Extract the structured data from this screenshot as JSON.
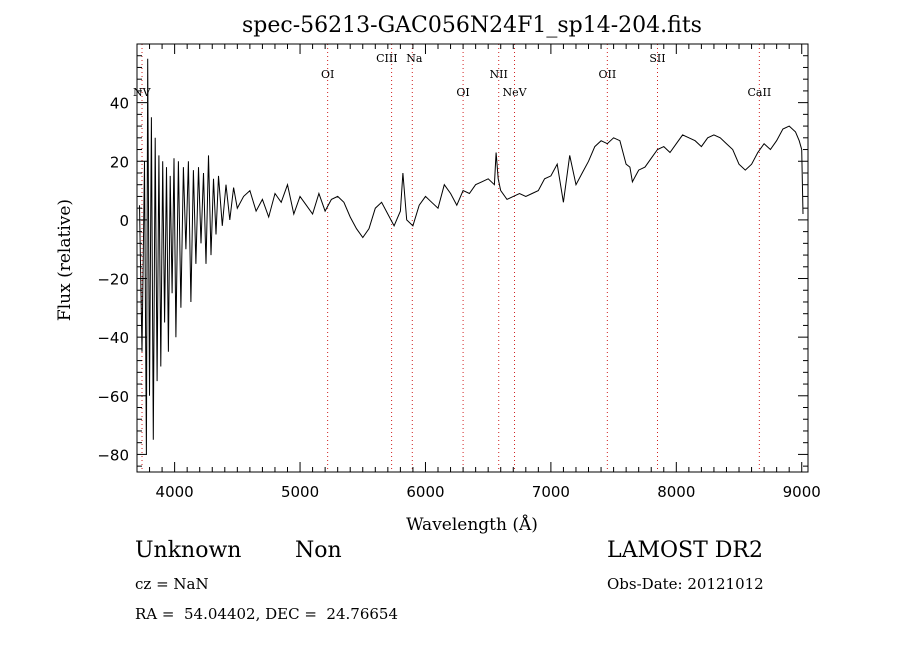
{
  "chart_data": {
    "type": "line",
    "title": "spec-56213-GAC056N24F1_sp14-204.fits",
    "xlabel": "Wavelength (Å)",
    "ylabel": "Flux (relative)",
    "xlim": [
      3700,
      9050
    ],
    "ylim": [
      -86,
      60
    ],
    "xticks": [
      4000,
      5000,
      6000,
      7000,
      8000,
      9000
    ],
    "yticks": [
      -80,
      -60,
      -40,
      -20,
      0,
      20,
      40
    ],
    "line_color": "#000000",
    "series": [
      {
        "x": [
          3720,
          3740,
          3760,
          3775,
          3785,
          3800,
          3815,
          3830,
          3845,
          3860,
          3875,
          3890,
          3905,
          3920,
          3935,
          3950,
          3965,
          3980,
          3995,
          4010,
          4030,
          4050,
          4070,
          4090,
          4110,
          4130,
          4150,
          4170,
          4190,
          4210,
          4230,
          4250,
          4270,
          4290,
          4310,
          4330,
          4350,
          4380,
          4410,
          4440,
          4470,
          4500,
          4550,
          4600,
          4650,
          4700,
          4750,
          4800,
          4850,
          4900,
          4950,
          5000,
          5050,
          5100,
          5150,
          5200,
          5250,
          5300,
          5350,
          5400,
          5450,
          5500,
          5550,
          5600,
          5650,
          5700,
          5750,
          5800,
          5820,
          5850,
          5900,
          5950,
          6000,
          6050,
          6100,
          6150,
          6200,
          6250,
          6300,
          6350,
          6400,
          6450,
          6500,
          6550,
          6563,
          6580,
          6600,
          6650,
          6700,
          6750,
          6800,
          6850,
          6900,
          6950,
          7000,
          7050,
          7100,
          7150,
          7200,
          7250,
          7300,
          7350,
          7400,
          7450,
          7500,
          7550,
          7600,
          7630,
          7650,
          7700,
          7750,
          7800,
          7850,
          7900,
          7950,
          8000,
          8050,
          8100,
          8150,
          8200,
          8250,
          8300,
          8350,
          8400,
          8450,
          8500,
          8550,
          8600,
          8650,
          8700,
          8750,
          8800,
          8850,
          8900,
          8950,
          8980,
          9000,
          9010
        ],
        "y": [
          5,
          -45,
          20,
          -80,
          55,
          -60,
          35,
          -75,
          28,
          -55,
          22,
          -50,
          20,
          -35,
          18,
          -45,
          15,
          -25,
          21,
          -40,
          20,
          -30,
          18,
          -10,
          20,
          -28,
          17,
          -15,
          18,
          -8,
          16,
          -15,
          22,
          -12,
          14,
          -5,
          15,
          -2,
          12,
          0,
          11,
          4,
          8,
          10,
          3,
          7,
          1,
          9,
          6,
          12,
          2,
          8,
          5,
          2,
          9,
          3,
          7,
          8,
          6,
          1,
          -3,
          -6,
          -3,
          4,
          6,
          2,
          -2,
          3,
          16,
          0,
          -2,
          5,
          8,
          6,
          4,
          12,
          9,
          5,
          10,
          9,
          12,
          13,
          14,
          12,
          23,
          14,
          10,
          7,
          8,
          9,
          8,
          9,
          10,
          14,
          15,
          19,
          6,
          22,
          12,
          16,
          20,
          25,
          27,
          26,
          28,
          27,
          19,
          18,
          13,
          17,
          18,
          21,
          24,
          25,
          23,
          26,
          29,
          28,
          27,
          25,
          28,
          29,
          28,
          26,
          24,
          19,
          17,
          19,
          23,
          26,
          24,
          27,
          31,
          32,
          30,
          27,
          24,
          2
        ]
      }
    ],
    "annotations": [
      {
        "label": "NV",
        "x": 3740,
        "y_level": 1
      },
      {
        "label": "OI",
        "x": 5220,
        "y_level": 2
      },
      {
        "label": "CIII",
        "x": 5730,
        "y_level": 3
      },
      {
        "label": "Na",
        "x": 5895,
        "y_level": 3
      },
      {
        "label": "OI",
        "x": 6300,
        "y_level": 1
      },
      {
        "label": "NII",
        "x": 6584,
        "y_level": 2
      },
      {
        "label": "NeV",
        "x": 6710,
        "y_level": 1
      },
      {
        "label": "OII",
        "x": 7450,
        "y_level": 2
      },
      {
        "label": "SII",
        "x": 7850,
        "y_level": 3
      },
      {
        "label": "CaII",
        "x": 8662,
        "y_level": 1
      }
    ],
    "line_marker_color": "#d02020"
  },
  "info": {
    "object_class": "Unknown",
    "object_subclass": "Non",
    "survey": "LAMOST DR2",
    "cz": "cz = NaN",
    "obs_date": "Obs-Date: 20121012",
    "coords": "RA =  54.04402, DEC =  24.76654"
  }
}
